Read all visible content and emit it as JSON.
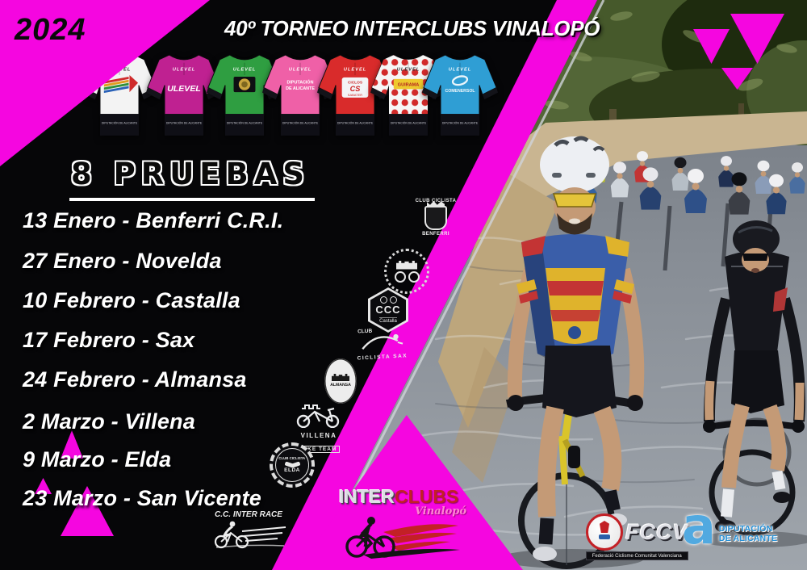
{
  "year": "2024",
  "title": "40º TORNEO INTERCLUBS VINALOPÓ",
  "events_heading": "8 PRUEBAS",
  "events": [
    {
      "text": "13 Enero - Benferri C.R.I."
    },
    {
      "text": "27 Enero - Novelda"
    },
    {
      "text": "10 Febrero - Castalla"
    },
    {
      "text": "17 Febrero - Sax"
    },
    {
      "text": "24 Febrero - Almansa"
    },
    {
      "text": "2 Marzo - Villena"
    },
    {
      "text": "9 Marzo - Elda"
    },
    {
      "text": "23 Marzo - San Vicente"
    }
  ],
  "jerseys_common": {
    "brand": "ULEVEL",
    "waist_text": "DIPUTACIÓN DE ALICANTE"
  },
  "jerseys": [
    {
      "id": "ulevel-white",
      "color": "#f3f3f3",
      "variant": "rainbow",
      "label_lines": []
    },
    {
      "id": "ulevel-magenta",
      "color": "#bf2191",
      "variant": "big-brand",
      "label_lines": [
        "ULEVEL"
      ]
    },
    {
      "id": "green-leader",
      "color": "#2f9e41",
      "variant": "emblem",
      "label_lines": []
    },
    {
      "id": "diputacion-pink",
      "color": "#ef60a7",
      "variant": "two-line",
      "label_lines": [
        "DIPUTACIÓN",
        "DE ALICANTE"
      ]
    },
    {
      "id": "ciclos-cs-red",
      "color": "#d92b2b",
      "variant": "box",
      "label_lines": [
        "CICLOS",
        "CS",
        "SABATER"
      ]
    },
    {
      "id": "guirama-polka",
      "color": "#f6f6f6",
      "variant": "dots",
      "label_lines": [
        "GUIRAMA"
      ]
    },
    {
      "id": "comenersol-blue",
      "color": "#2f9ed4",
      "variant": "swirl",
      "label_lines": [
        "COMENERSOL"
      ]
    }
  ],
  "club_logos": [
    {
      "id": "benferri",
      "top_text": "CLUB CICLISTA",
      "bottom_text": "BENFERRI"
    },
    {
      "id": "novelda"
    },
    {
      "id": "castalla",
      "abbr": "CCC",
      "sub": "Castalla"
    },
    {
      "id": "sax",
      "line1": "CLUB",
      "line2": "CICLISTA SAX"
    },
    {
      "id": "almansa",
      "text": "ALMANSA"
    },
    {
      "id": "villena",
      "line1": "VILLENA",
      "line2": "BIKE TEAM"
    },
    {
      "id": "elda",
      "top_text": "CLUB CICLISTA",
      "bottom_text": "ELDA"
    },
    {
      "id": "interrace",
      "text": "C.C. INTER RACE"
    }
  ],
  "footer": {
    "interclubs": {
      "part1": "INTER",
      "part2": "CLUBS",
      "sub": "Vinalopó"
    },
    "fccv": {
      "abbr": "FCCV",
      "full": "Federació Ciclisme Comunitat Valenciana"
    },
    "diputacion": {
      "glyph": "a",
      "line1": "DIPUTACIÓN",
      "line2": "DE ALICANTE"
    }
  },
  "colors": {
    "magenta": "#f506e0",
    "accent_red": "#c32026",
    "diputacion_blue": "#2490d8",
    "silver": "#dfe0e6"
  }
}
